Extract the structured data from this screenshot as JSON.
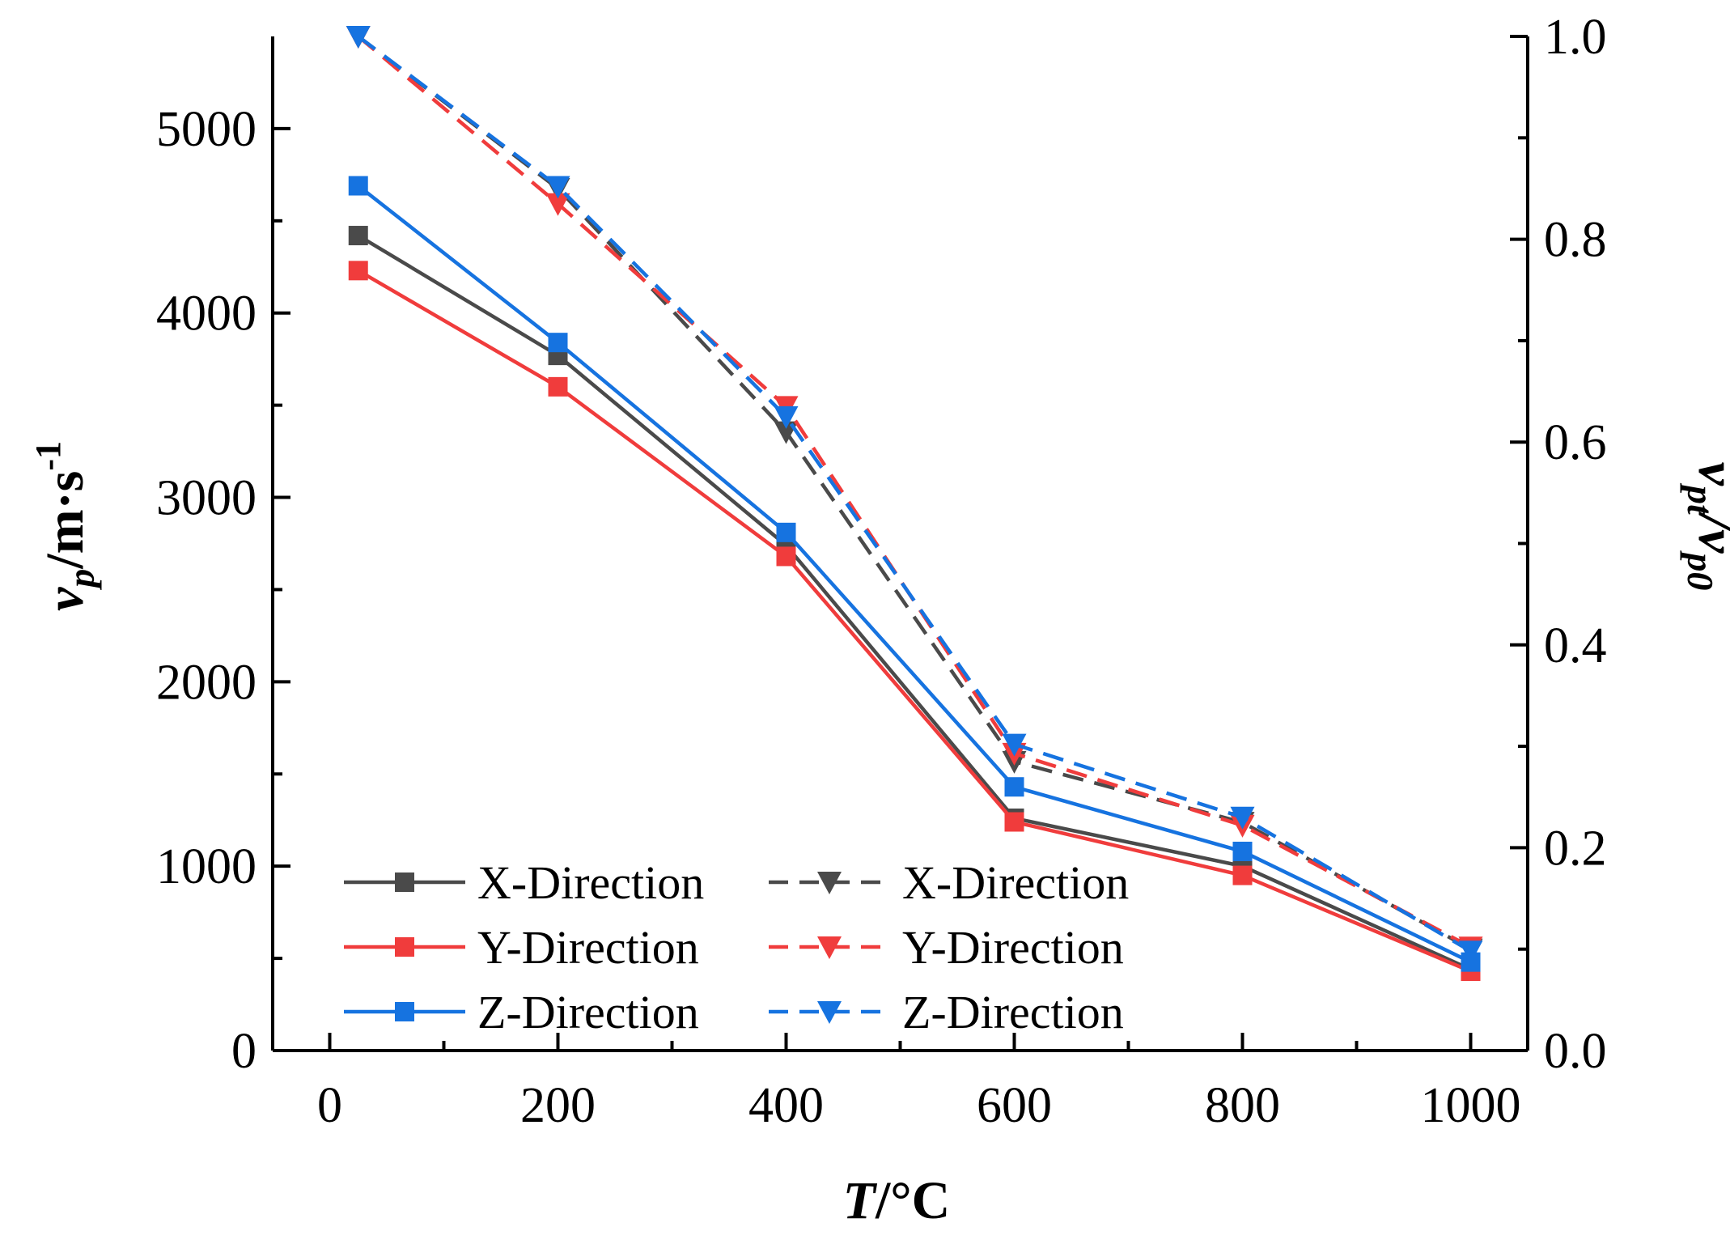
{
  "chart_data": {
    "type": "line",
    "x": [
      25,
      200,
      400,
      600,
      800,
      1000
    ],
    "x_axis": {
      "label_main": "T",
      "label_unit": "/°C",
      "range": [
        -50,
        1050
      ],
      "ticks": [
        0,
        200,
        400,
        600,
        800,
        1000
      ],
      "tick_labels": [
        "0",
        "200",
        "400",
        "600",
        "800",
        "1000"
      ]
    },
    "y_left": {
      "label_main": "v",
      "label_sub": "p",
      "label_unit": "/m·s",
      "label_sup": "-1",
      "range": [
        0,
        5500
      ],
      "ticks": [
        0,
        1000,
        2000,
        3000,
        4000,
        5000
      ],
      "tick_labels": [
        "0",
        "1000",
        "2000",
        "3000",
        "4000",
        "5000"
      ]
    },
    "y_right": {
      "label_main1": "v",
      "label_sub1": "pt",
      "label_main2": "/v",
      "label_sub2": "p0",
      "range": [
        0,
        1.0
      ],
      "ticks": [
        0,
        0.2,
        0.4,
        0.6,
        0.8,
        1.0
      ],
      "tick_labels": [
        "0.0",
        "0.2",
        "0.4",
        "0.6",
        "0.8",
        "1.0"
      ]
    },
    "series": [
      {
        "name": "X-Direction",
        "axis": "left",
        "style": "solid",
        "marker": "square",
        "color": "#4a4a4a",
        "values": [
          4420,
          3770,
          2740,
          1260,
          1000,
          440
        ]
      },
      {
        "name": "Y-Direction",
        "axis": "left",
        "style": "solid",
        "marker": "square",
        "color": "#f03c3c",
        "values": [
          4230,
          3600,
          2680,
          1240,
          950,
          430
        ]
      },
      {
        "name": "Z-Direction",
        "axis": "left",
        "style": "solid",
        "marker": "square",
        "color": "#1673e0",
        "values": [
          4690,
          3840,
          2810,
          1430,
          1080,
          480
        ]
      },
      {
        "name": "X-Direction",
        "axis": "right",
        "style": "dashed",
        "marker": "triangle-down",
        "color": "#4a4a4a",
        "values": [
          1.0,
          0.85,
          0.61,
          0.285,
          0.225,
          0.1
        ]
      },
      {
        "name": "Y-Direction",
        "axis": "right",
        "style": "dashed",
        "marker": "triangle-down",
        "color": "#f03c3c",
        "values": [
          1.0,
          0.835,
          0.635,
          0.293,
          0.222,
          0.102
        ]
      },
      {
        "name": "Z-Direction",
        "axis": "right",
        "style": "dashed",
        "marker": "triangle-down",
        "color": "#1673e0",
        "values": [
          1.0,
          0.852,
          0.625,
          0.302,
          0.23,
          0.098
        ]
      }
    ],
    "legend": {
      "position": "bottom-left",
      "columns": 2
    },
    "grid": false
  }
}
